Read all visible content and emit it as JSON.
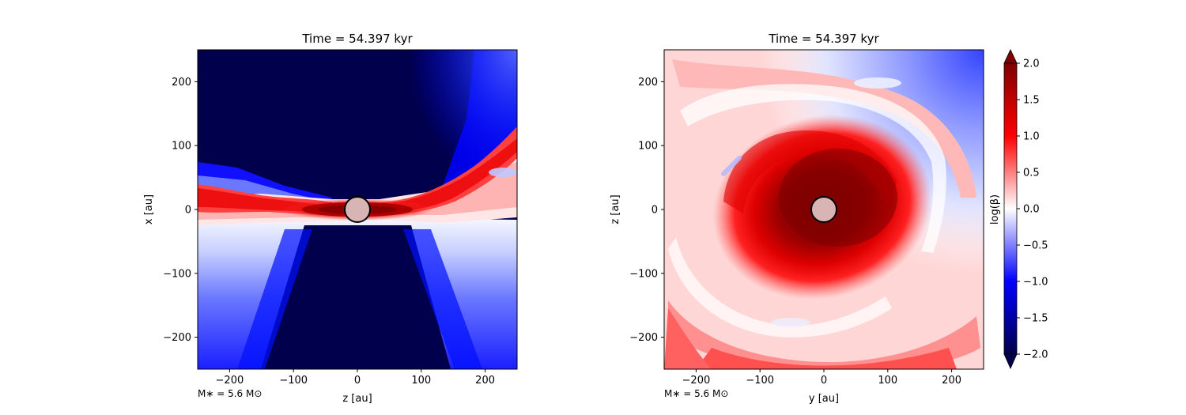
{
  "chart_data": [
    {
      "type": "heatmap",
      "title": "Time = 54.397 kyr",
      "xlabel": "z [au]",
      "ylabel": "x [au]",
      "xlim": [
        -250,
        250
      ],
      "ylim": [
        -250,
        250
      ],
      "xticks": [
        "−200",
        "−100",
        "0",
        "100",
        "200"
      ],
      "xtick_values": [
        -200,
        -100,
        0,
        100,
        200
      ],
      "yticks": [
        "200",
        "100",
        "0",
        "−100",
        "−200"
      ],
      "ytick_values": [
        200,
        100,
        0,
        -100,
        -200
      ],
      "annotation": "M∗ = 5.6 M⊙",
      "sink_marker": {
        "x": 0,
        "y": 0,
        "radius": 20
      },
      "pattern": "edge-on disk: red midplane, dark-blue bipolar outflow cones",
      "colormap": "seismic"
    },
    {
      "type": "heatmap",
      "title": "Time = 54.397 kyr",
      "xlabel": "y [au]",
      "ylabel": "z [au]",
      "xlim": [
        -250,
        250
      ],
      "ylim": [
        -250,
        250
      ],
      "xticks": [
        "−200",
        "−100",
        "0",
        "100",
        "200"
      ],
      "xtick_values": [
        -200,
        -100,
        0,
        100,
        200
      ],
      "yticks": [
        "200",
        "100",
        "0",
        "−100",
        "−200"
      ],
      "ytick_values": [
        200,
        100,
        0,
        -100,
        -200
      ],
      "annotation": "M∗ = 5.6 M⊙",
      "sink_marker": {
        "x": 0,
        "y": 0,
        "radius": 20
      },
      "pattern": "face-on disk: dark-red core with spiral arms in pink",
      "colormap": "seismic"
    }
  ],
  "colorbar": {
    "label": "log(β)",
    "min": -2.0,
    "max": 2.0,
    "ticks": [
      "2.0",
      "1.5",
      "1.0",
      "0.5",
      "0.0",
      "−0.5",
      "−1.0",
      "−1.5",
      "−2.0"
    ],
    "tick_values": [
      2.0,
      1.5,
      1.0,
      0.5,
      0.0,
      -0.5,
      -1.0,
      -1.5,
      -2.0
    ],
    "extend": "both",
    "colors": {
      "low": "#00004c",
      "mid_low": "#0000ff",
      "mid": "#ffffff",
      "mid_high": "#ff0000",
      "high": "#800000"
    }
  }
}
